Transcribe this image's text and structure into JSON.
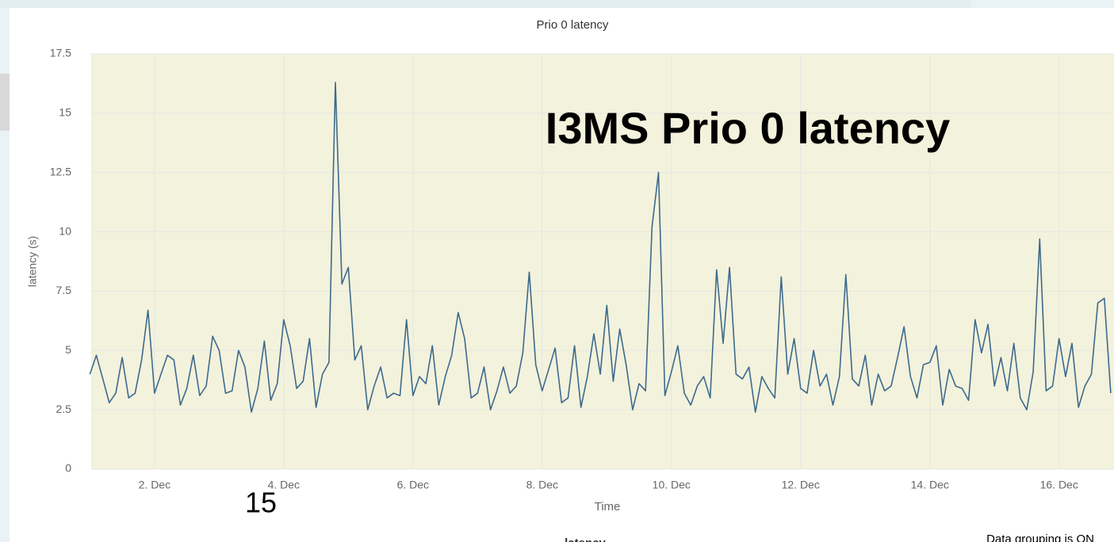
{
  "chart_data": {
    "type": "line",
    "title": "Prio 0 latency",
    "annotation": "I3MS Prio 0 latency",
    "slide_number": "15",
    "x_label": "Time",
    "y_label": "latency (s)",
    "legend_label": "latency",
    "grouping_note": "Data grouping is ON",
    "background": "#f3f2dc",
    "grid": true,
    "xlim": [
      1.02,
      16.85
    ],
    "ylim": [
      0,
      17.5
    ],
    "yticks": [
      0,
      2.5,
      5,
      7.5,
      10,
      12.5,
      15,
      17.5
    ],
    "xticks": [
      {
        "value": 2,
        "label": "2. Dec"
      },
      {
        "value": 4,
        "label": "4. Dec"
      },
      {
        "value": 6,
        "label": "6. Dec"
      },
      {
        "value": 8,
        "label": "8. Dec"
      },
      {
        "value": 10,
        "label": "10. Dec"
      },
      {
        "value": 12,
        "label": "12. Dec"
      },
      {
        "value": 14,
        "label": "14. Dec"
      },
      {
        "value": 16,
        "label": "16. Dec"
      }
    ],
    "x": [
      1.0,
      1.1,
      1.2,
      1.3,
      1.4,
      1.5,
      1.6,
      1.7,
      1.8,
      1.9,
      2.0,
      2.1,
      2.2,
      2.3,
      2.4,
      2.5,
      2.6,
      2.7,
      2.8,
      2.9,
      3.0,
      3.1,
      3.2,
      3.3,
      3.4,
      3.5,
      3.6,
      3.7,
      3.8,
      3.9,
      4.0,
      4.1,
      4.2,
      4.3,
      4.4,
      4.5,
      4.6,
      4.7,
      4.8,
      4.9,
      5.0,
      5.1,
      5.2,
      5.3,
      5.4,
      5.5,
      5.6,
      5.7,
      5.8,
      5.9,
      6.0,
      6.1,
      6.2,
      6.3,
      6.4,
      6.5,
      6.6,
      6.7,
      6.8,
      6.9,
      7.0,
      7.1,
      7.2,
      7.3,
      7.4,
      7.5,
      7.6,
      7.7,
      7.8,
      7.9,
      8.0,
      8.1,
      8.2,
      8.3,
      8.4,
      8.5,
      8.6,
      8.7,
      8.8,
      8.9,
      9.0,
      9.1,
      9.2,
      9.3,
      9.4,
      9.5,
      9.6,
      9.7,
      9.8,
      9.9,
      10.0,
      10.1,
      10.2,
      10.3,
      10.4,
      10.5,
      10.6,
      10.7,
      10.8,
      10.9,
      11.0,
      11.1,
      11.2,
      11.3,
      11.4,
      11.5,
      11.6,
      11.7,
      11.8,
      11.9,
      12.0,
      12.1,
      12.2,
      12.3,
      12.4,
      12.5,
      12.6,
      12.7,
      12.8,
      12.9,
      13.0,
      13.1,
      13.2,
      13.3,
      13.4,
      13.5,
      13.6,
      13.7,
      13.8,
      13.9,
      14.0,
      14.1,
      14.2,
      14.3,
      14.4,
      14.5,
      14.6,
      14.7,
      14.8,
      14.9,
      15.0,
      15.1,
      15.2,
      15.3,
      15.4,
      15.5,
      15.6,
      15.7,
      15.8,
      15.9,
      16.0,
      16.1,
      16.2,
      16.3,
      16.4,
      16.5,
      16.6,
      16.7,
      16.8
    ],
    "series": [
      {
        "name": "latency",
        "color": "#3d6a8e",
        "values": [
          4.0,
          4.8,
          3.8,
          2.8,
          3.2,
          4.7,
          3.0,
          3.2,
          4.6,
          6.7,
          3.2,
          4.0,
          4.8,
          4.6,
          2.7,
          3.4,
          4.8,
          3.1,
          3.5,
          5.6,
          5.0,
          3.2,
          3.3,
          5.0,
          4.3,
          2.4,
          3.4,
          5.4,
          2.9,
          3.6,
          6.3,
          5.2,
          3.4,
          3.7,
          5.5,
          2.6,
          4.0,
          4.5,
          16.3,
          7.8,
          8.5,
          4.6,
          5.2,
          2.5,
          3.5,
          4.3,
          3.0,
          3.2,
          3.1,
          6.3,
          3.1,
          3.9,
          3.6,
          5.2,
          2.7,
          3.9,
          4.8,
          6.6,
          5.5,
          3.0,
          3.2,
          4.3,
          2.5,
          3.3,
          4.3,
          3.2,
          3.5,
          4.9,
          8.3,
          4.4,
          3.3,
          4.2,
          5.1,
          2.8,
          3.0,
          5.2,
          2.6,
          3.9,
          5.7,
          4.0,
          6.9,
          3.7,
          5.9,
          4.4,
          2.5,
          3.6,
          3.3,
          10.2,
          12.5,
          3.1,
          4.1,
          5.2,
          3.2,
          2.7,
          3.5,
          3.9,
          3.0,
          8.4,
          5.3,
          8.5,
          4.0,
          3.8,
          4.3,
          2.4,
          3.9,
          3.4,
          3.0,
          8.1,
          4.0,
          5.5,
          3.4,
          3.2,
          5.0,
          3.5,
          4.0,
          2.7,
          3.9,
          8.2,
          3.8,
          3.5,
          4.8,
          2.7,
          4.0,
          3.3,
          3.5,
          4.7,
          6.0,
          3.9,
          3.0,
          4.4,
          4.5,
          5.2,
          2.7,
          4.2,
          3.5,
          3.4,
          2.9,
          6.3,
          4.9,
          6.1,
          3.5,
          4.7,
          3.3,
          5.3,
          3.0,
          2.5,
          4.1,
          9.7,
          3.3,
          3.5,
          5.5,
          3.9,
          5.3,
          2.6,
          3.5,
          4.0,
          7.0,
          7.2,
          3.2
        ]
      }
    ]
  }
}
